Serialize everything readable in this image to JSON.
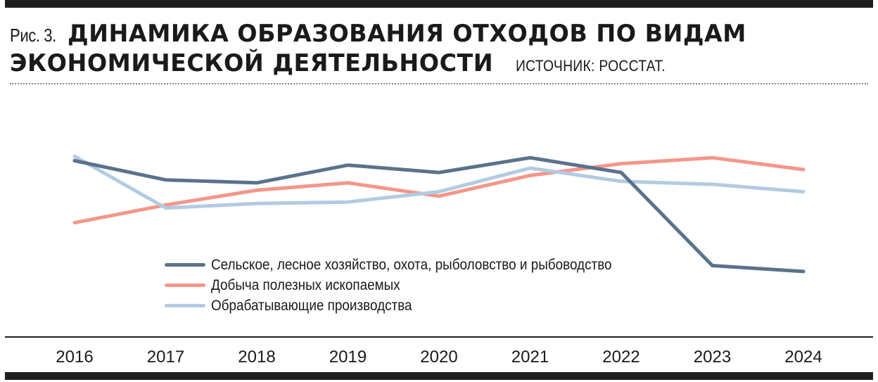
{
  "figure": {
    "label": "Рис. 3.",
    "title_line1": "ДИНАМИКА ОБРАЗОВАНИЯ ОТХОДОВ ПО ВИДАМ",
    "title_line2": "ЭКОНОМИЧЕСКОЙ ДЕЯТЕЛЬНОСТИ",
    "source": "ИСТОЧНИК: РОССТАТ."
  },
  "colors": {
    "agriculture": "#5a728c",
    "mining": "#f4968a",
    "manufacturing": "#b2cbe2",
    "bars": "#1e1e1e"
  },
  "chart_data": {
    "type": "line",
    "x": [
      "2016",
      "2017",
      "2018",
      "2019",
      "2020",
      "2021",
      "2022",
      "2023",
      "2024"
    ],
    "ylim": [
      0,
      100
    ],
    "grid": false,
    "legend_position": "bottom-center",
    "series": [
      {
        "name": "Сельское, лесное хозяйство, охота, рыболовство и рыбоводство",
        "key": "agriculture",
        "values": [
          76,
          63,
          61,
          73,
          68,
          78,
          68,
          5,
          1
        ]
      },
      {
        "name": "Добыча полезных ископаемых",
        "key": "mining",
        "values": [
          34,
          46,
          56,
          61,
          52,
          66,
          74,
          78,
          70
        ]
      },
      {
        "name": "Обрабатывающие производства",
        "key": "manufacturing",
        "values": [
          79,
          44,
          47,
          48,
          55,
          71,
          62,
          60,
          55
        ]
      }
    ]
  }
}
